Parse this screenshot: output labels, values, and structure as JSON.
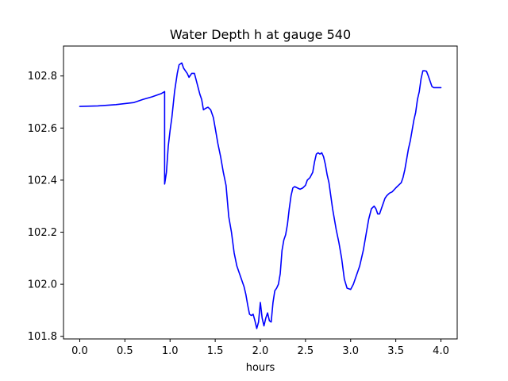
{
  "chart_data": {
    "type": "line",
    "title": "Water Depth h at gauge 540",
    "xlabel": "hours",
    "ylabel": "",
    "xlim": [
      -0.18,
      4.18
    ],
    "ylim": [
      101.79,
      102.915
    ],
    "xticks": [
      0.0,
      0.5,
      1.0,
      1.5,
      2.0,
      2.5,
      3.0,
      3.5,
      4.0
    ],
    "xtick_labels": [
      "0.0",
      "0.5",
      "1.0",
      "1.5",
      "2.0",
      "2.5",
      "3.0",
      "3.5",
      "4.0"
    ],
    "yticks": [
      101.8,
      102.0,
      102.2,
      102.4,
      102.6,
      102.8
    ],
    "ytick_labels": [
      "101.8",
      "102.0",
      "102.2",
      "102.4",
      "102.6",
      "102.8"
    ],
    "grid": false,
    "legend": "none",
    "series": [
      {
        "color": "#0000ff",
        "x": [
          0.0,
          0.2,
          0.4,
          0.6,
          0.7,
          0.8,
          0.9,
          0.94,
          0.94,
          0.96,
          0.98,
          1.0,
          1.02,
          1.05,
          1.08,
          1.1,
          1.13,
          1.15,
          1.17,
          1.19,
          1.21,
          1.24,
          1.27,
          1.3,
          1.33,
          1.35,
          1.37,
          1.39,
          1.42,
          1.45,
          1.48,
          1.5,
          1.53,
          1.56,
          1.59,
          1.62,
          1.65,
          1.68,
          1.71,
          1.74,
          1.77,
          1.79,
          1.8,
          1.82,
          1.84,
          1.86,
          1.88,
          1.9,
          1.92,
          1.94,
          1.96,
          1.98,
          2.0,
          2.02,
          2.04,
          2.06,
          2.08,
          2.1,
          2.12,
          2.14,
          2.16,
          2.18,
          2.2,
          2.22,
          2.24,
          2.26,
          2.28,
          2.3,
          2.32,
          2.34,
          2.36,
          2.38,
          2.41,
          2.44,
          2.47,
          2.5,
          2.52,
          2.55,
          2.58,
          2.6,
          2.62,
          2.64,
          2.66,
          2.68,
          2.7,
          2.72,
          2.74,
          2.76,
          2.78,
          2.8,
          2.82,
          2.84,
          2.87,
          2.9,
          2.93,
          2.96,
          3.0,
          3.03,
          3.06,
          3.08,
          3.1,
          3.12,
          3.14,
          3.17,
          3.2,
          3.23,
          3.26,
          3.28,
          3.3,
          3.32,
          3.34,
          3.36,
          3.38,
          3.4,
          3.43,
          3.46,
          3.5,
          3.53,
          3.56,
          3.58,
          3.6,
          3.62,
          3.64,
          3.66,
          3.68,
          3.7,
          3.72,
          3.74,
          3.76,
          3.78,
          3.8,
          3.82,
          3.84,
          3.86,
          3.88,
          3.9,
          3.92,
          3.94,
          3.96,
          3.98,
          4.0
        ],
        "y": [
          102.683,
          102.685,
          102.69,
          102.698,
          102.71,
          102.72,
          102.732,
          102.74,
          102.385,
          102.43,
          102.53,
          102.59,
          102.64,
          102.74,
          102.81,
          102.843,
          102.85,
          102.83,
          102.82,
          102.81,
          102.795,
          102.81,
          102.81,
          102.77,
          102.73,
          102.71,
          102.67,
          102.675,
          102.68,
          102.67,
          102.64,
          102.6,
          102.54,
          102.49,
          102.43,
          102.38,
          102.26,
          102.2,
          102.12,
          102.07,
          102.04,
          102.02,
          102.01,
          101.99,
          101.96,
          101.92,
          101.885,
          101.88,
          101.885,
          101.86,
          101.83,
          101.855,
          101.93,
          101.87,
          101.84,
          101.87,
          101.89,
          101.86,
          101.855,
          101.93,
          101.975,
          101.985,
          102.0,
          102.04,
          102.13,
          102.17,
          102.19,
          102.23,
          102.29,
          102.34,
          102.37,
          102.375,
          102.37,
          102.365,
          102.37,
          102.38,
          102.4,
          102.41,
          102.43,
          102.47,
          102.5,
          102.505,
          102.5,
          102.505,
          102.49,
          102.46,
          102.42,
          102.39,
          102.34,
          102.29,
          102.25,
          102.21,
          102.16,
          102.1,
          102.02,
          101.985,
          101.98,
          102.0,
          102.03,
          102.05,
          102.07,
          102.1,
          102.13,
          102.19,
          102.25,
          102.29,
          102.3,
          102.29,
          102.27,
          102.27,
          102.29,
          102.31,
          102.33,
          102.34,
          102.35,
          102.355,
          102.37,
          102.38,
          102.39,
          102.41,
          102.44,
          102.48,
          102.52,
          102.55,
          102.59,
          102.63,
          102.66,
          102.71,
          102.74,
          102.79,
          102.82,
          102.82,
          102.818,
          102.8,
          102.78,
          102.76,
          102.755,
          102.755,
          102.755,
          102.755,
          102.755
        ]
      }
    ]
  }
}
